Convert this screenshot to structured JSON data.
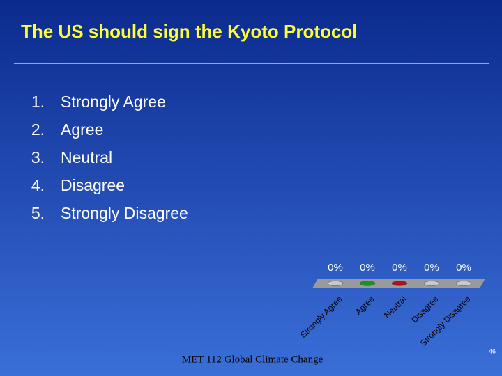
{
  "slide": {
    "title": "The US should sign the Kyoto Protocol",
    "items": [
      {
        "number": "1.",
        "text": "Strongly Agree"
      },
      {
        "number": "2.",
        "text": "Agree"
      },
      {
        "number": "3.",
        "text": "Neutral"
      },
      {
        "number": "4.",
        "text": "Disagree"
      },
      {
        "number": "5.",
        "text": "Strongly Disagree"
      }
    ],
    "footer": "MET 112 Global Climate Change",
    "page_number": "46"
  },
  "chart_data": {
    "type": "bar",
    "categories": [
      "Strongly Agree",
      "Agree",
      "Neutral",
      "Disagree",
      "Strongly Disagree"
    ],
    "values": [
      0,
      0,
      0,
      0,
      0
    ],
    "value_labels": [
      "0%",
      "0%",
      "0%",
      "0%",
      "0%"
    ],
    "colors": [
      "#c8c8c8",
      "#1f8f2a",
      "#b0101a",
      "#c8c8c8",
      "#c8c8c8"
    ]
  }
}
